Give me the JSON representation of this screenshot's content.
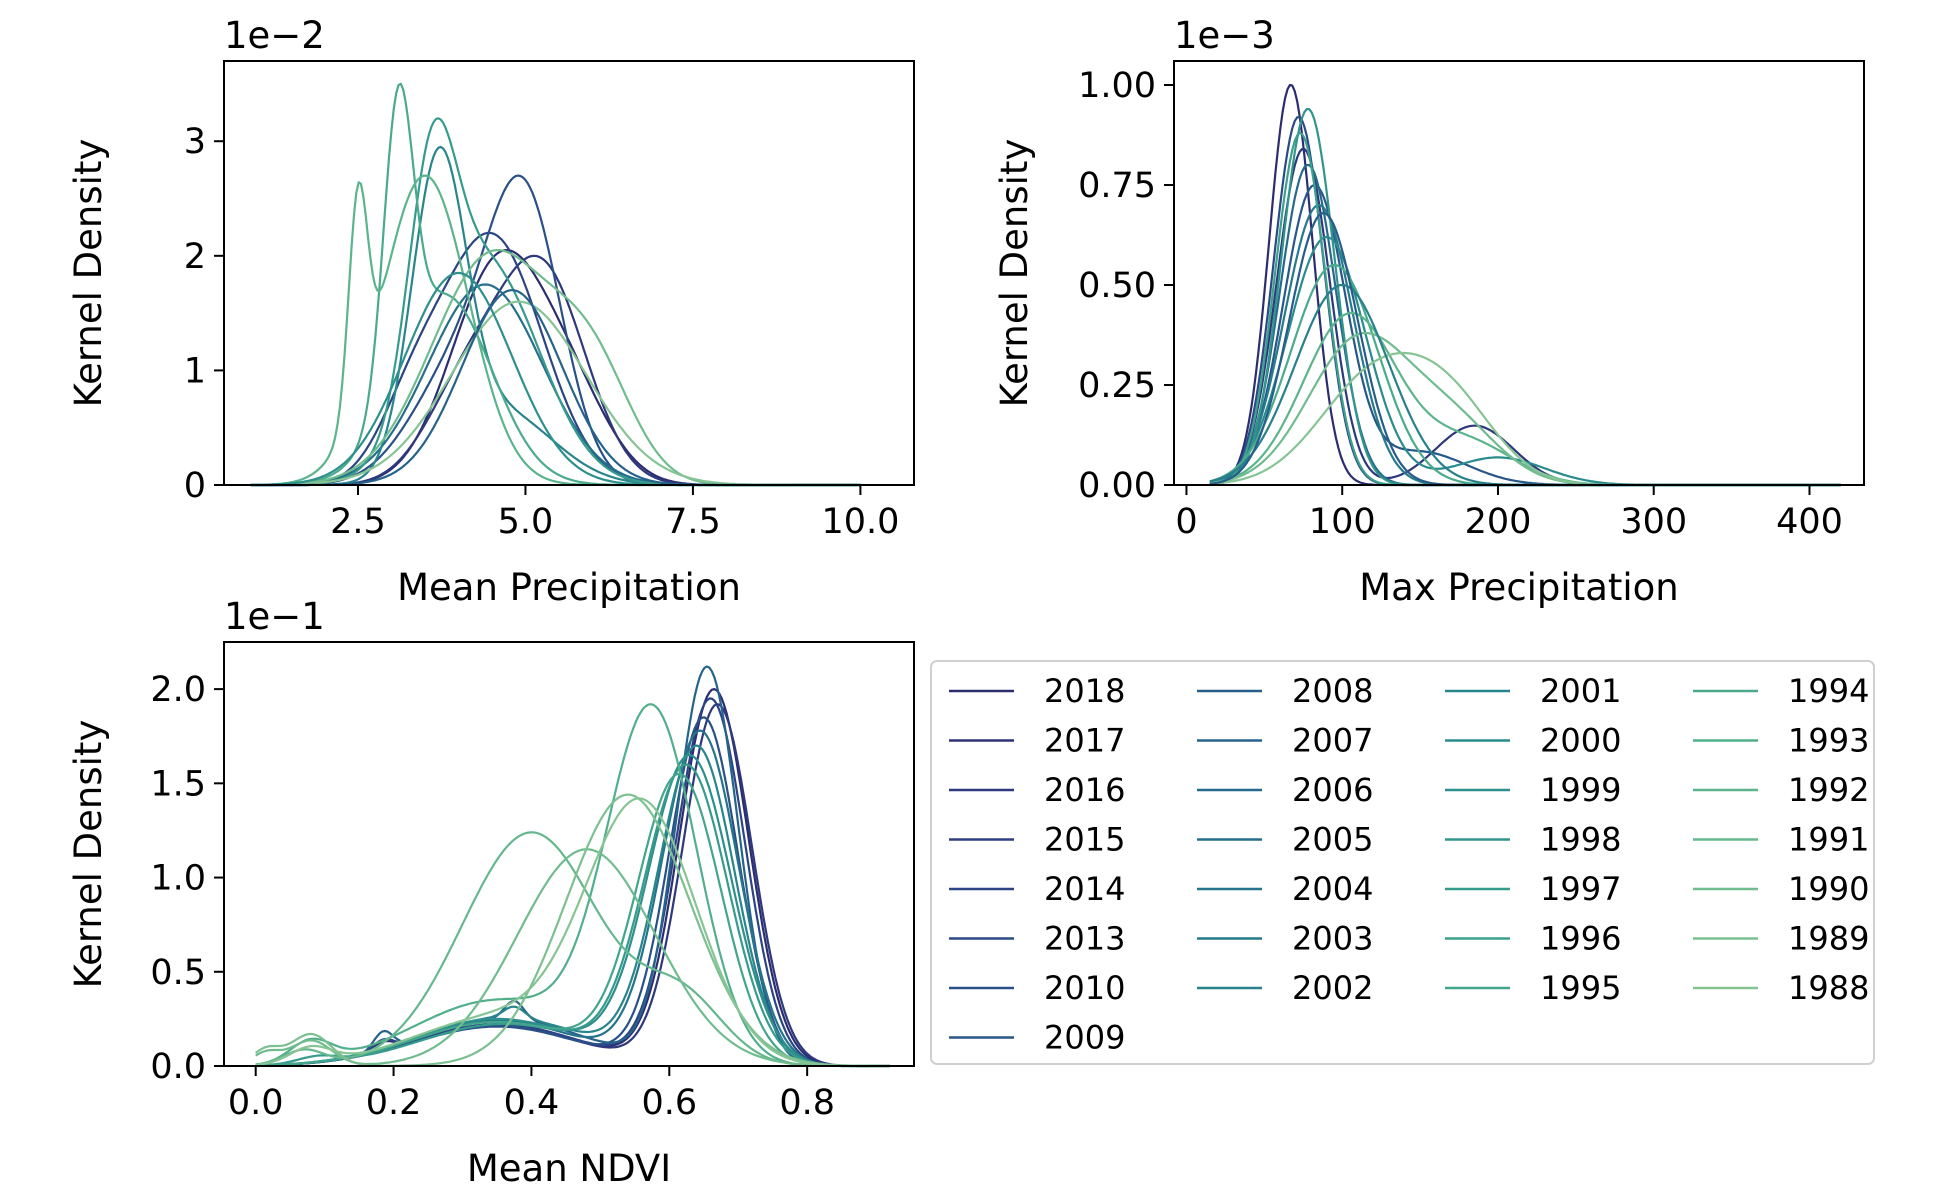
{
  "chart_data": [
    {
      "type": "line",
      "id": "mean_precip",
      "xlabel": "Mean Precipitation",
      "ylabel": "Kernel Density",
      "y_offset_label": "1e−2",
      "xlim": [
        0.5,
        10.8
      ],
      "ylim": [
        0,
        3.7
      ],
      "xticks": [
        2.5,
        5.0,
        7.5,
        10.0
      ],
      "xtick_labels": [
        "2.5",
        "5.0",
        "7.5",
        "10.0"
      ],
      "yticks": [
        0,
        1,
        2,
        3
      ],
      "ytick_labels": [
        "0",
        "1",
        "2",
        "3"
      ],
      "curves": [
        {
          "year": "2018",
          "x0": 0.9,
          "x1": 10.0,
          "comps": [
            [
              0.75,
              4.6,
              0.7
            ],
            [
              0.25,
              5.7,
              0.6
            ]
          ],
          "peak": 2.05
        },
        {
          "year": "2016",
          "x0": 0.9,
          "x1": 10.0,
          "comps": [
            [
              0.7,
              5.25,
              0.65
            ],
            [
              0.3,
              4.1,
              0.6
            ]
          ],
          "peak": 2.0
        },
        {
          "year": "2014",
          "x0": 0.9,
          "x1": 10.0,
          "comps": [
            [
              0.8,
              4.5,
              0.75
            ],
            [
              0.2,
              3.3,
              0.5
            ]
          ],
          "peak": 2.2
        },
        {
          "year": "2010",
          "x0": 0.9,
          "x1": 10.0,
          "comps": [
            [
              0.7,
              5.0,
              0.55
            ],
            [
              0.3,
              4.0,
              0.7
            ]
          ],
          "peak": 2.7
        },
        {
          "year": "2005",
          "x0": 0.9,
          "x1": 10.0,
          "comps": [
            [
              1.0,
              4.4,
              0.85
            ]
          ],
          "peak": 1.75
        },
        {
          "year": "2001",
          "x0": 0.9,
          "x1": 10.0,
          "comps": [
            [
              0.8,
              3.7,
              0.4
            ],
            [
              0.2,
              4.6,
              0.8
            ]
          ],
          "peak": 2.95
        },
        {
          "year": "1997",
          "x0": 0.9,
          "x1": 10.0,
          "comps": [
            [
              0.5,
              3.6,
              0.35
            ],
            [
              0.5,
              4.4,
              0.8
            ]
          ],
          "peak": 3.2
        },
        {
          "year": "1994",
          "x0": 0.9,
          "x1": 10.0,
          "comps": [
            [
              0.6,
              3.1,
              0.22
            ],
            [
              0.4,
              3.8,
              0.7
            ]
          ],
          "peak": 3.5
        },
        {
          "year": "1992",
          "x0": 0.9,
          "x1": 10.0,
          "comps": [
            [
              0.4,
              2.5,
              0.14
            ],
            [
              0.6,
              3.5,
              0.65
            ]
          ],
          "peak": 2.7
        },
        {
          "year": "1990",
          "x0": 0.9,
          "x1": 10.0,
          "comps": [
            [
              0.7,
              4.5,
              0.9
            ],
            [
              0.3,
              6.0,
              0.6
            ]
          ],
          "peak": 2.05
        },
        {
          "year": "1988",
          "x0": 0.9,
          "x1": 10.0,
          "comps": [
            [
              1.0,
              4.9,
              1.0
            ]
          ],
          "peak": 1.6
        },
        {
          "year": "1999",
          "x0": 0.9,
          "x1": 10.0,
          "comps": [
            [
              1.0,
              4.0,
              0.8
            ]
          ],
          "peak": 1.85
        },
        {
          "year": "2007",
          "x0": 0.9,
          "x1": 10.0,
          "comps": [
            [
              1.0,
              4.8,
              0.75
            ]
          ],
          "peak": 1.7
        }
      ]
    },
    {
      "type": "line",
      "id": "max_precip",
      "xlabel": "Max Precipitation",
      "ylabel": "Kernel Density",
      "y_offset_label": "1e−3",
      "xlim": [
        -8,
        435
      ],
      "ylim": [
        0,
        1.06
      ],
      "xticks": [
        0,
        100,
        200,
        300,
        400
      ],
      "xtick_labels": [
        "0",
        "100",
        "200",
        "300",
        "400"
      ],
      "yticks": [
        0.0,
        0.25,
        0.5,
        0.75,
        1.0
      ],
      "ytick_labels": [
        "0.00",
        "0.25",
        "0.50",
        "0.75",
        "1.00"
      ],
      "curves": [
        {
          "year": "2018",
          "x0": 15,
          "x1": 420,
          "comps": [
            [
              1.0,
              67,
              14
            ]
          ],
          "peak": 1.0
        },
        {
          "year": "2016",
          "x0": 15,
          "x1": 420,
          "comps": [
            [
              0.85,
              75,
              17
            ],
            [
              0.15,
              185,
              25
            ]
          ],
          "peak": 0.84
        },
        {
          "year": "2013",
          "x0": 15,
          "x1": 420,
          "comps": [
            [
              1.0,
              72,
              16
            ]
          ],
          "peak": 0.92
        },
        {
          "year": "2009",
          "x0": 15,
          "x1": 420,
          "comps": [
            [
              0.9,
              82,
              20
            ],
            [
              0.1,
              150,
              30
            ]
          ],
          "peak": 0.75
        },
        {
          "year": "2006",
          "x0": 15,
          "x1": 420,
          "comps": [
            [
              1.0,
              78,
              18
            ]
          ],
          "peak": 0.8
        },
        {
          "year": "2003",
          "x0": 15,
          "x1": 420,
          "comps": [
            [
              1.0,
              85,
              22
            ]
          ],
          "peak": 0.7
        },
        {
          "year": "2000",
          "x0": 15,
          "x1": 420,
          "comps": [
            [
              0.9,
              90,
              25
            ],
            [
              0.1,
              200,
              30
            ]
          ],
          "peak": 0.62
        },
        {
          "year": "1998",
          "x0": 15,
          "x1": 420,
          "comps": [
            [
              1.0,
              78,
              17
            ]
          ],
          "peak": 0.94
        },
        {
          "year": "1996",
          "x0": 15,
          "x1": 420,
          "comps": [
            [
              1.0,
              73,
              16
            ]
          ],
          "peak": 0.88
        },
        {
          "year": "1994",
          "x0": 15,
          "x1": 420,
          "comps": [
            [
              1.0,
              95,
              28
            ]
          ],
          "peak": 0.55
        },
        {
          "year": "1992",
          "x0": 15,
          "x1": 420,
          "comps": [
            [
              0.8,
              105,
              30
            ],
            [
              0.2,
              180,
              30
            ]
          ],
          "peak": 0.43
        },
        {
          "year": "1990",
          "x0": 15,
          "x1": 420,
          "comps": [
            [
              0.7,
              110,
              32
            ],
            [
              0.3,
              170,
              30
            ]
          ],
          "peak": 0.38
        },
        {
          "year": "1988",
          "x0": 15,
          "x1": 420,
          "comps": [
            [
              0.6,
              120,
              35
            ],
            [
              0.4,
              170,
              30
            ]
          ],
          "peak": 0.33
        },
        {
          "year": "2002",
          "x0": 15,
          "x1": 420,
          "comps": [
            [
              1.0,
              100,
              30
            ]
          ],
          "peak": 0.5
        },
        {
          "year": "2008",
          "x0": 15,
          "x1": 420,
          "comps": [
            [
              1.0,
              88,
              22
            ]
          ],
          "peak": 0.68
        }
      ]
    },
    {
      "type": "line",
      "id": "mean_ndvi",
      "xlabel": "Mean NDVI",
      "ylabel": "Kernel Density",
      "y_offset_label": "1e−1",
      "xlim": [
        -0.046,
        0.955
      ],
      "ylim": [
        0,
        2.25
      ],
      "xticks": [
        0.0,
        0.2,
        0.4,
        0.6,
        0.8
      ],
      "xtick_labels": [
        "0.0",
        "0.2",
        "0.4",
        "0.6",
        "0.8"
      ],
      "yticks": [
        0.0,
        0.5,
        1.0,
        1.5,
        2.0
      ],
      "ytick_labels": [
        "0.0",
        "0.5",
        "1.0",
        "1.5",
        "2.0"
      ],
      "curves": [
        {
          "year": "2018",
          "x0": 0.0,
          "x1": 0.92,
          "comps": [
            [
              0.9,
              0.665,
              0.05
            ],
            [
              0.1,
              0.35,
              0.12
            ],
            [
              0.02,
              0.185,
              0.015
            ]
          ],
          "peak": 2.0
        },
        {
          "year": "2016",
          "x0": 0.0,
          "x1": 0.92,
          "comps": [
            [
              0.9,
              0.67,
              0.05
            ],
            [
              0.1,
              0.35,
              0.12
            ]
          ],
          "peak": 1.92
        },
        {
          "year": "2014",
          "x0": 0.0,
          "x1": 0.92,
          "comps": [
            [
              0.88,
              0.66,
              0.05
            ],
            [
              0.1,
              0.35,
              0.12
            ],
            [
              0.025,
              0.185,
              0.015
            ]
          ],
          "peak": 1.95
        },
        {
          "year": "2010",
          "x0": 0.0,
          "x1": 0.92,
          "comps": [
            [
              0.88,
              0.65,
              0.05
            ],
            [
              0.1,
              0.35,
              0.12
            ]
          ],
          "peak": 1.85
        },
        {
          "year": "2007",
          "x0": 0.0,
          "x1": 0.92,
          "comps": [
            [
              0.85,
              0.655,
              0.045
            ],
            [
              0.1,
              0.36,
              0.12
            ],
            [
              0.04,
              0.185,
              0.014
            ],
            [
              0.04,
              0.375,
              0.014
            ]
          ],
          "peak": 2.12
        },
        {
          "year": "2004",
          "x0": 0.0,
          "x1": 0.92,
          "comps": [
            [
              0.88,
              0.645,
              0.055
            ],
            [
              0.12,
              0.35,
              0.12
            ]
          ],
          "peak": 1.78
        },
        {
          "year": "2001",
          "x0": 0.0,
          "x1": 0.92,
          "comps": [
            [
              0.85,
              0.64,
              0.055
            ],
            [
              0.13,
              0.36,
              0.12
            ],
            [
              0.03,
              0.375,
              0.015
            ]
          ],
          "peak": 1.7
        },
        {
          "year": "1999",
          "x0": 0.0,
          "x1": 0.92,
          "comps": [
            [
              0.85,
              0.63,
              0.06
            ],
            [
              0.13,
              0.35,
              0.12
            ]
          ],
          "peak": 1.65
        },
        {
          "year": "1997",
          "x0": 0.0,
          "x1": 0.92,
          "comps": [
            [
              0.85,
              0.625,
              0.06
            ],
            [
              0.12,
              0.36,
              0.12
            ],
            [
              0.02,
              0.09,
              0.03
            ]
          ],
          "peak": 1.6
        },
        {
          "year": "1995",
          "x0": 0.0,
          "x1": 0.92,
          "comps": [
            [
              0.85,
              0.615,
              0.06
            ],
            [
              0.13,
              0.35,
              0.12
            ]
          ],
          "peak": 1.55
        },
        {
          "year": "1993",
          "x0": 0.0,
          "x1": 0.92,
          "comps": [
            [
              0.8,
              0.575,
              0.065
            ],
            [
              0.15,
              0.35,
              0.12
            ],
            [
              0.05,
              0.08,
              0.03
            ]
          ],
          "peak": 1.92
        },
        {
          "year": "1991",
          "x0": 0.0,
          "x1": 0.92,
          "comps": [
            [
              0.75,
              0.4,
              0.1
            ],
            [
              0.2,
              0.62,
              0.06
            ],
            [
              0.05,
              0.07,
              0.03
            ]
          ],
          "peak": 1.24
        },
        {
          "year": "1990",
          "x0": 0.0,
          "x1": 0.92,
          "comps": [
            [
              0.85,
              0.48,
              0.1
            ],
            [
              0.1,
              0.08,
              0.03
            ],
            [
              0.05,
              0.015,
              0.02
            ]
          ],
          "peak": 1.15
        },
        {
          "year": "1989",
          "x0": 0.0,
          "x1": 0.92,
          "comps": [
            [
              0.85,
              0.54,
              0.09
            ],
            [
              0.1,
              0.08,
              0.03
            ],
            [
              0.05,
              0.015,
              0.02
            ]
          ],
          "peak": 1.44
        },
        {
          "year": "1988",
          "x0": 0.0,
          "x1": 0.92,
          "comps": [
            [
              0.8,
              0.56,
              0.08
            ],
            [
              0.15,
              0.35,
              0.12
            ],
            [
              0.05,
              0.08,
              0.03
            ]
          ],
          "peak": 1.42
        }
      ]
    }
  ],
  "legend": {
    "columns": [
      [
        "2018",
        "2017",
        "2016",
        "2015",
        "2014",
        "2013",
        "2010",
        "2009"
      ],
      [
        "2008",
        "2007",
        "2006",
        "2005",
        "2004",
        "2003",
        "2002"
      ],
      [
        "2001",
        "2000",
        "1999",
        "1998",
        "1997",
        "1996",
        "1995"
      ],
      [
        "1994",
        "1993",
        "1992",
        "1991",
        "1990",
        "1989",
        "1988"
      ]
    ]
  },
  "year_colors": {
    "2018": "#2c2d71",
    "2017": "#2d3277",
    "2016": "#2e387c",
    "2015": "#2e3e80",
    "2014": "#2d4484",
    "2013": "#2c4a86",
    "2010": "#2a5088",
    "2009": "#285789",
    "2008": "#275d8a",
    "2007": "#26638b",
    "2006": "#25698c",
    "2005": "#256f8c",
    "2004": "#25748c",
    "2003": "#267a8c",
    "2002": "#27808c",
    "2001": "#28858c",
    "2000": "#2a8b8c",
    "1999": "#2d908c",
    "1998": "#31958c",
    "1997": "#369b8c",
    "1996": "#3ba08c",
    "1995": "#42a58c",
    "1994": "#4aaa8c",
    "1993": "#52af8c",
    "1992": "#5bb48c",
    "1991": "#65b88d",
    "1990": "#70bc8f",
    "1989": "#7cc091",
    "1988": "#87c494"
  }
}
